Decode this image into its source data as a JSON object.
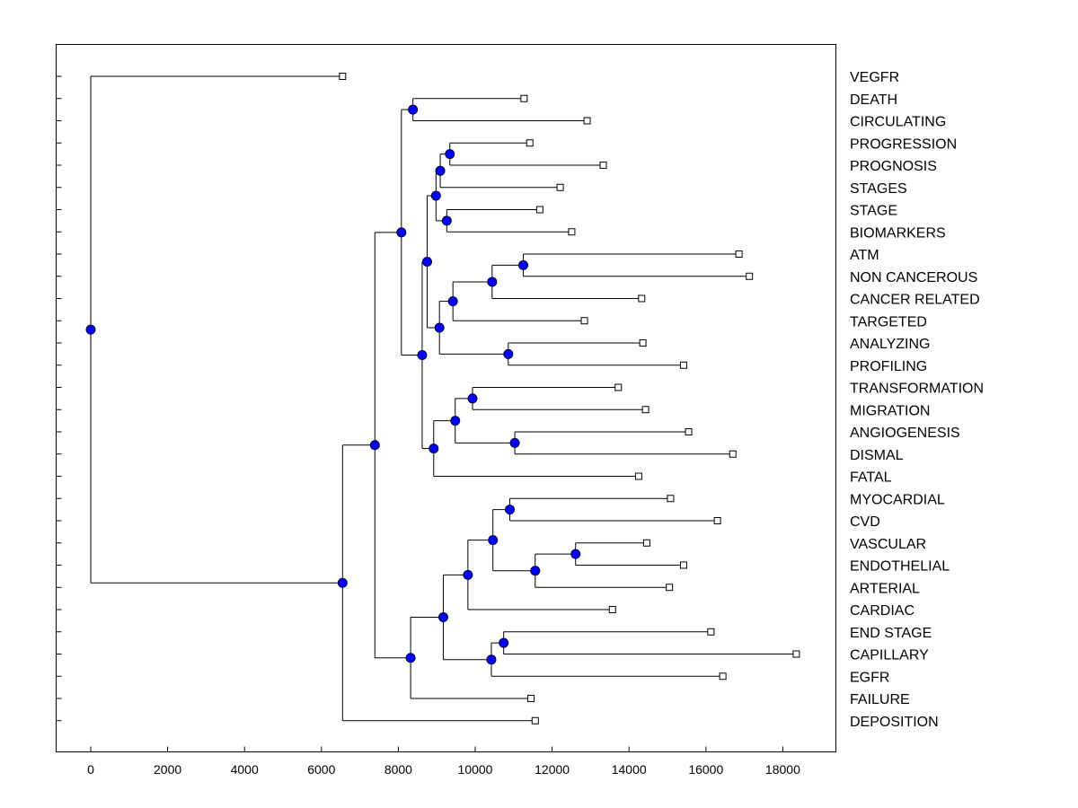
{
  "chart_data": {
    "type": "dendrogram",
    "orientation": "horizontal",
    "xlim": [
      -900,
      19300
    ],
    "xticks": [
      0,
      2000,
      4000,
      6000,
      8000,
      10000,
      12000,
      14000,
      16000,
      18000
    ],
    "xtick_labels": [
      "0",
      "2000",
      "4000",
      "6000",
      "8000",
      "10000",
      "12000",
      "14000",
      "16000",
      "18000"
    ],
    "colors": {
      "node": "#0000ff",
      "line": "#000000",
      "frame": "#000000",
      "leaf_fill": "#ffffff"
    },
    "leaves": [
      {
        "label": "VEGFR",
        "x": 6550
      },
      {
        "label": "DEATH",
        "x": 11270
      },
      {
        "label": "CIRCULATING",
        "x": 12910
      },
      {
        "label": "PROGRESSION",
        "x": 11420
      },
      {
        "label": "PROGNOSIS",
        "x": 13330
      },
      {
        "label": "STAGES",
        "x": 12210
      },
      {
        "label": "STAGE",
        "x": 11680
      },
      {
        "label": "BIOMARKERS",
        "x": 12510
      },
      {
        "label": "ATM",
        "x": 16860
      },
      {
        "label": "NON CANCEROUS",
        "x": 17130
      },
      {
        "label": "CANCER RELATED",
        "x": 14330
      },
      {
        "label": "TARGETED",
        "x": 12840
      },
      {
        "label": "ANALYZING",
        "x": 14360
      },
      {
        "label": "PROFILING",
        "x": 15420
      },
      {
        "label": "TRANSFORMATION",
        "x": 13720
      },
      {
        "label": "MIGRATION",
        "x": 14430
      },
      {
        "label": "ANGIOGENESIS",
        "x": 15550
      },
      {
        "label": "DISMAL",
        "x": 16700
      },
      {
        "label": "FATAL",
        "x": 14250
      },
      {
        "label": "MYOCARDIAL",
        "x": 15080
      },
      {
        "label": "CVD",
        "x": 16300
      },
      {
        "label": "VASCULAR",
        "x": 14460
      },
      {
        "label": "ENDOTHELIAL",
        "x": 15420
      },
      {
        "label": "ARTERIAL",
        "x": 15050
      },
      {
        "label": "CARDIAC",
        "x": 13570
      },
      {
        "label": "END STAGE",
        "x": 16130
      },
      {
        "label": "CAPILLARY",
        "x": 18350
      },
      {
        "label": "EGFR",
        "x": 16440
      },
      {
        "label": "FAILURE",
        "x": 11450
      },
      {
        "label": "DEPOSITION",
        "x": 11560
      }
    ],
    "nodes": [
      {
        "id": "n_death_circ",
        "x": 8380,
        "children": [
          1,
          2
        ]
      },
      {
        "id": "n_prog",
        "x": 9340,
        "children": [
          3,
          4
        ]
      },
      {
        "id": "n_prog_stages",
        "x": 9090,
        "children": [
          "n_prog",
          5
        ]
      },
      {
        "id": "n_stage_bio",
        "x": 9260,
        "children": [
          6,
          7
        ]
      },
      {
        "id": "n_stage_group",
        "x": 8980,
        "children": [
          "n_prog_stages",
          "n_stage_bio"
        ]
      },
      {
        "id": "n_atm_non",
        "x": 11250,
        "children": [
          8,
          9
        ]
      },
      {
        "id": "n_atm_cancer",
        "x": 10440,
        "children": [
          "n_atm_non",
          10
        ]
      },
      {
        "id": "n_atm_targeted",
        "x": 9420,
        "children": [
          "n_atm_cancer",
          11
        ]
      },
      {
        "id": "n_anal_prof",
        "x": 10860,
        "children": [
          12,
          13
        ]
      },
      {
        "id": "n_atm_prof",
        "x": 9070,
        "children": [
          "n_atm_targeted",
          "n_anal_prof"
        ]
      },
      {
        "id": "n_stage_prof",
        "x": 8750,
        "children": [
          "n_stage_group",
          "n_atm_prof"
        ]
      },
      {
        "id": "n_trans_mig",
        "x": 9930,
        "children": [
          14,
          15
        ]
      },
      {
        "id": "n_angio_dismal",
        "x": 11030,
        "children": [
          16,
          17
        ]
      },
      {
        "id": "n_trans_dismal",
        "x": 9480,
        "children": [
          "n_trans_mig",
          "n_angio_dismal"
        ]
      },
      {
        "id": "n_trans_fatal",
        "x": 8920,
        "children": [
          "n_trans_dismal",
          18
        ]
      },
      {
        "id": "n_stage_fatal",
        "x": 8620,
        "children": [
          "n_stage_prof",
          "n_trans_fatal"
        ]
      },
      {
        "id": "n_death_fatal",
        "x": 8080,
        "children": [
          "n_death_circ",
          "n_stage_fatal"
        ]
      },
      {
        "id": "n_myo_cvd",
        "x": 10900,
        "children": [
          19,
          20
        ]
      },
      {
        "id": "n_vasc_endo",
        "x": 12610,
        "children": [
          21,
          22
        ]
      },
      {
        "id": "n_vasc_art",
        "x": 11560,
        "children": [
          "n_vasc_endo",
          23
        ]
      },
      {
        "id": "n_myo_art",
        "x": 10460,
        "children": [
          "n_myo_cvd",
          "n_vasc_art"
        ]
      },
      {
        "id": "n_myo_cardiac",
        "x": 9810,
        "children": [
          "n_myo_art",
          24
        ]
      },
      {
        "id": "n_end_cap",
        "x": 10740,
        "children": [
          25,
          26
        ]
      },
      {
        "id": "n_end_egfr",
        "x": 10420,
        "children": [
          "n_end_cap",
          27
        ]
      },
      {
        "id": "n_myo_egfr",
        "x": 9170,
        "children": [
          "n_myo_cardiac",
          "n_end_egfr"
        ]
      },
      {
        "id": "n_myo_failure",
        "x": 8320,
        "children": [
          "n_myo_egfr",
          28
        ]
      },
      {
        "id": "n_death_failure",
        "x": 7390,
        "children": [
          "n_death_fatal",
          "n_myo_failure"
        ]
      },
      {
        "id": "n_death_depo",
        "x": 6550,
        "children": [
          "n_death_failure",
          29
        ]
      },
      {
        "id": "n_root",
        "x": 0,
        "children": [
          0,
          "n_death_depo"
        ]
      }
    ]
  }
}
